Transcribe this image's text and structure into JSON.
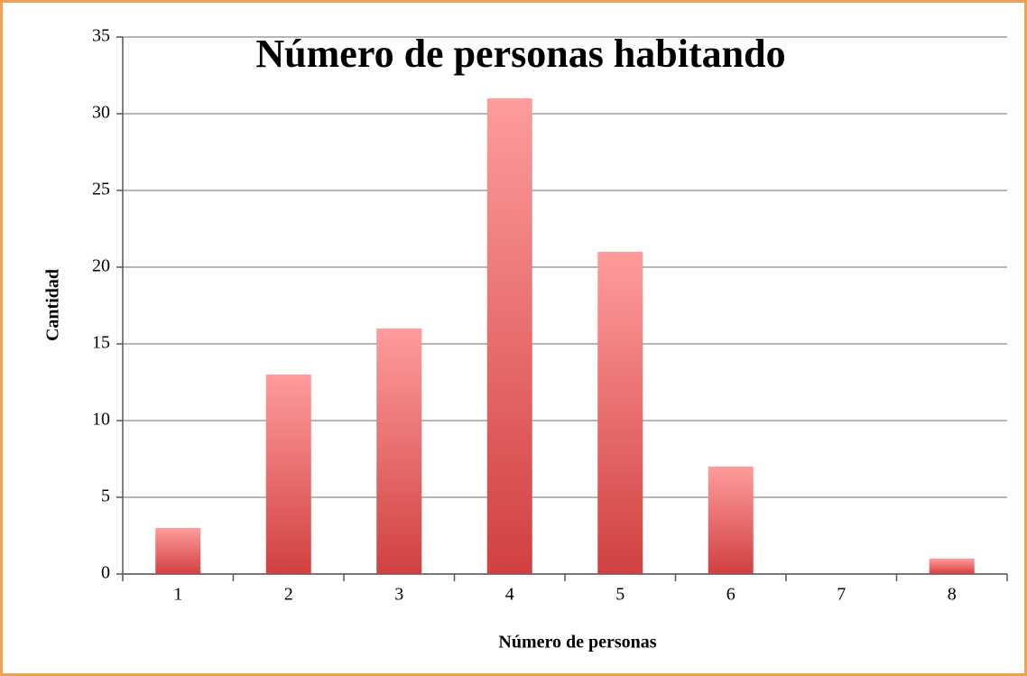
{
  "chart_data": {
    "type": "bar",
    "title": "Número de personas habitando",
    "x_label": "Número de personas",
    "y_label": "Cantidad",
    "categories": [
      "1",
      "2",
      "3",
      "4",
      "5",
      "6",
      "7",
      "8"
    ],
    "values": [
      3,
      13,
      16,
      31,
      21,
      7,
      0,
      1
    ],
    "color": "#d44444",
    "ylim": [
      0,
      35
    ],
    "yticks": [
      0,
      5,
      10,
      15,
      20,
      25,
      30,
      35
    ],
    "grid": true
  }
}
